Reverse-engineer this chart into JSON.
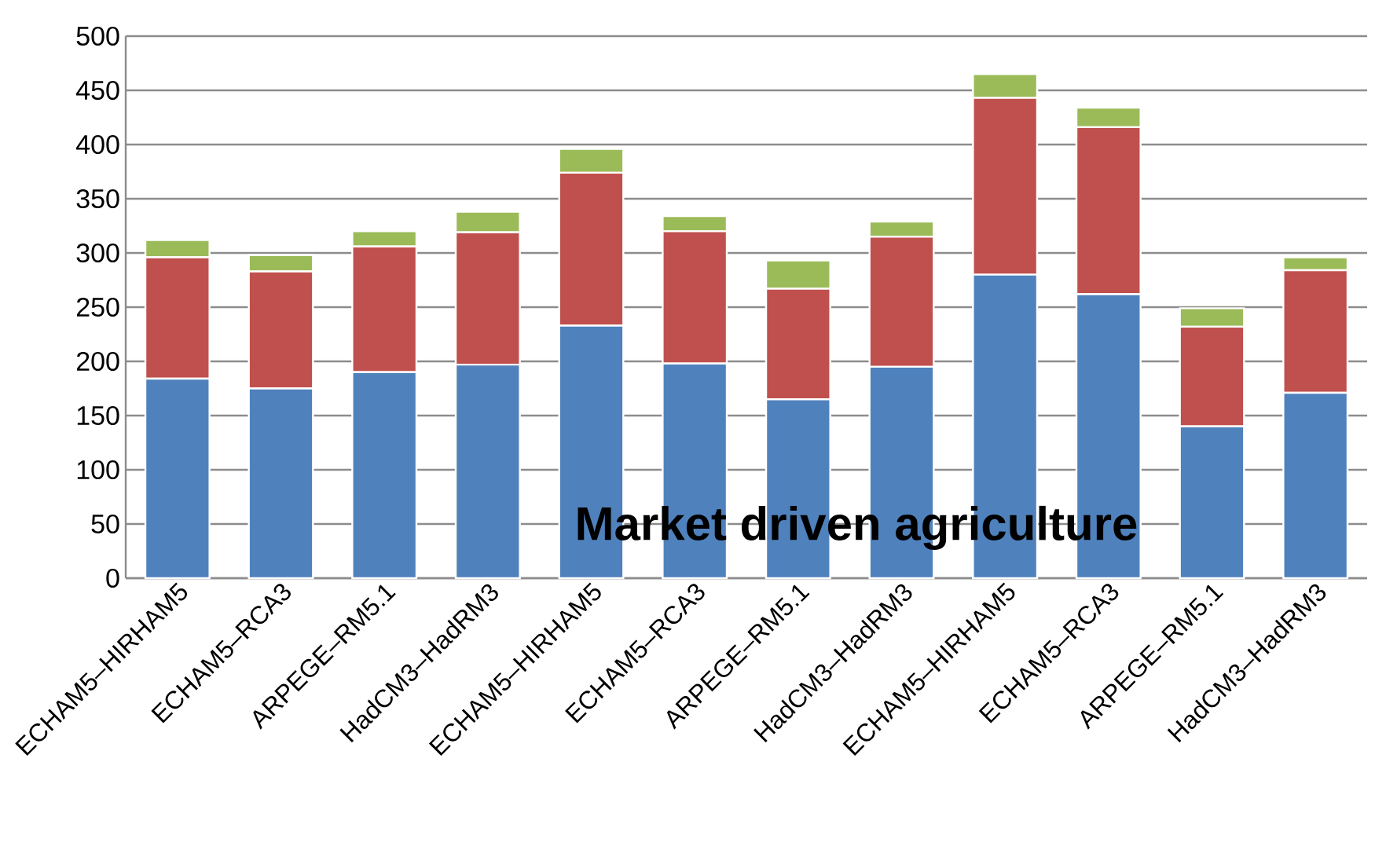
{
  "chart_data": {
    "type": "bar",
    "stacked": true,
    "categories": [
      "ECHAM5–HIRHAM5",
      "ECHAM5–RCA3",
      "ARPEGE–RM5.1",
      "HadCM3–HadRM3",
      "ECHAM5–HIRHAM5",
      "ECHAM5–RCA3",
      "ARPEGE–RM5.1",
      "HadCM3–HadRM3",
      "ECHAM5–HIRHAM5",
      "ECHAM5–RCA3",
      "ARPEGE–RM5.1",
      "HadCM3–HadRM3"
    ],
    "series": [
      {
        "color": "#4f81bd",
        "values": [
          184,
          175,
          190,
          197,
          233,
          198,
          165,
          195,
          280,
          262,
          140,
          171
        ]
      },
      {
        "color": "#c0504d",
        "values": [
          112,
          108,
          116,
          122,
          141,
          122,
          102,
          120,
          163,
          154,
          92,
          113
        ]
      },
      {
        "color": "#9bbb59",
        "values": [
          16,
          15,
          14,
          19,
          22,
          14,
          26,
          14,
          22,
          18,
          17,
          12
        ]
      }
    ],
    "ylim": [
      0,
      500
    ],
    "yticks": [
      0,
      50,
      100,
      150,
      200,
      250,
      300,
      350,
      400,
      450,
      500
    ],
    "grid": "y",
    "annotations": [
      "Market driven agriculture"
    ]
  }
}
